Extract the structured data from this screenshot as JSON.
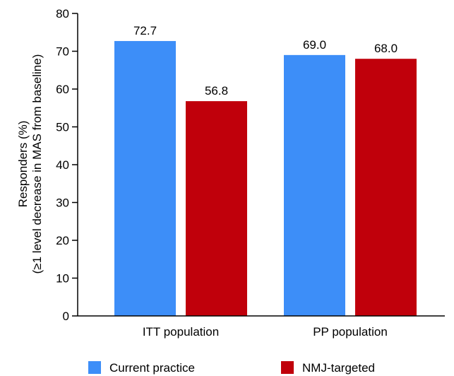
{
  "chart_data": {
    "type": "bar",
    "categories": [
      "ITT population",
      "PP population"
    ],
    "series": [
      {
        "name": "Current practice",
        "values": [
          72.7,
          69.0
        ],
        "labels": [
          "72.7",
          "69.0"
        ],
        "color": "#3d8ef8"
      },
      {
        "name": "NMJ-targeted",
        "values": [
          56.8,
          68.0
        ],
        "labels": [
          "56.8",
          "68.0"
        ],
        "color": "#c0000b"
      }
    ],
    "ylabel_lines": [
      "Responders (%)",
      "(≥1 level decrease in MAS from baseline)"
    ],
    "xlabel": "",
    "ylim": [
      0,
      80
    ],
    "yticks": [
      0,
      10,
      20,
      30,
      40,
      50,
      60,
      70,
      80
    ],
    "ytick_labels": [
      "0",
      "10",
      "20",
      "30",
      "40",
      "50",
      "60",
      "70",
      "80"
    ],
    "grid": false,
    "legend_position": "bottom"
  }
}
